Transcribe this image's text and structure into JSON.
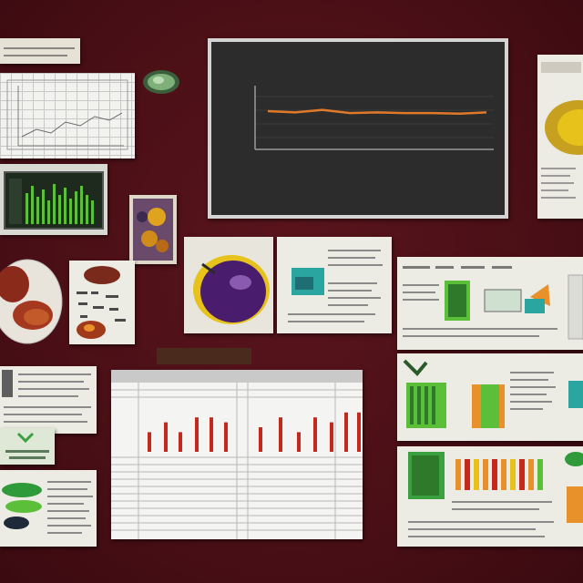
{
  "header_tag": "",
  "section_caption": "",
  "chalkboard": {
    "title_line1": "",
    "title_line2": "",
    "ylabel": "",
    "xlabel": ""
  },
  "colors": {
    "background": "#4a0f16",
    "line_series": "#e07a2a",
    "bar_series": "#c5281d",
    "green_accent": "#5cbf3a",
    "orange_accent": "#e8902a",
    "teal_accent": "#2aa5a0",
    "purple_accent": "#4a1c6e",
    "yellow_accent": "#e6c21a"
  },
  "chart_data": [
    {
      "type": "line",
      "title": "",
      "xlabel": "",
      "ylabel": "",
      "x": [
        1,
        2,
        3,
        4,
        5,
        6,
        7,
        8,
        9
      ],
      "series": [
        {
          "values": [
            60,
            58,
            62,
            57,
            58,
            57,
            57,
            56,
            58
          ]
        }
      ],
      "ylim": [
        0,
        100
      ],
      "grid": false
    },
    {
      "type": "bar",
      "title": "",
      "x": [
        1,
        2,
        3,
        4,
        5,
        6,
        7,
        8,
        9,
        10,
        11,
        12,
        13
      ],
      "values": [
        4,
        6,
        4,
        7,
        7,
        6,
        5,
        7,
        4,
        7,
        6,
        8,
        8
      ],
      "ylim": [
        0,
        10
      ],
      "grid": true
    }
  ]
}
